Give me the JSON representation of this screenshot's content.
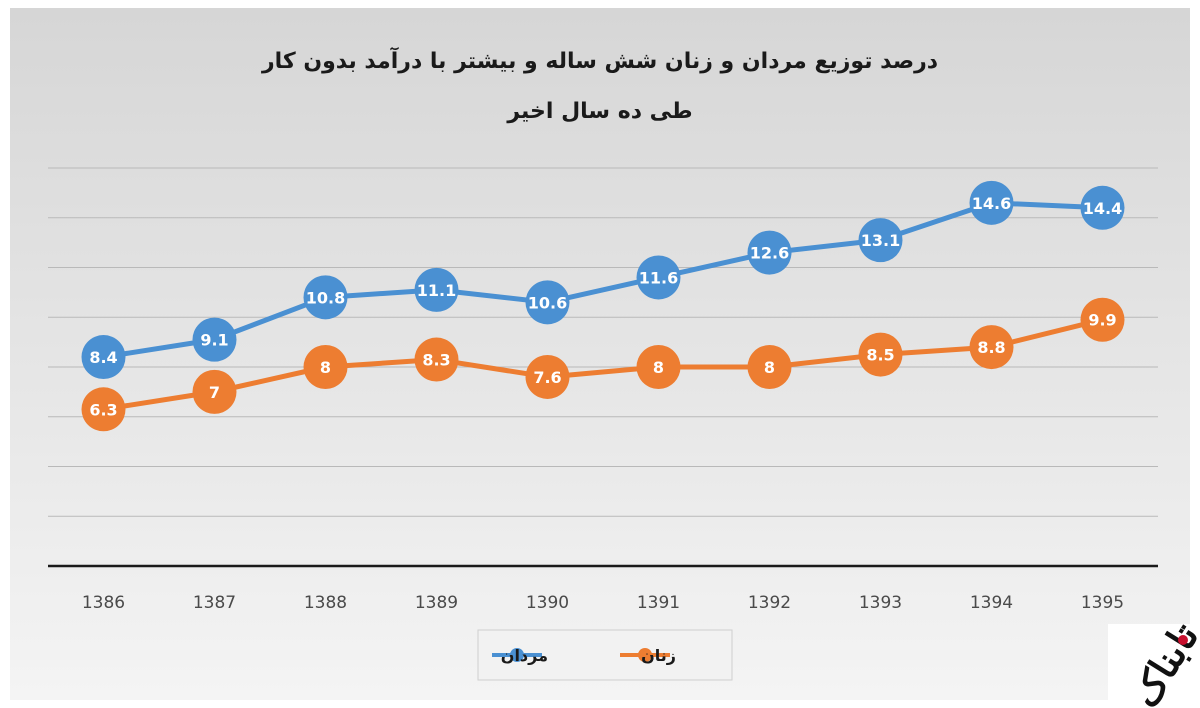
{
  "chart_data": {
    "type": "line",
    "title": "درصد توزیع مردان و زنان شش ساله و بیشتر با درآمد بدون کار",
    "subtitle": "طی ده سال اخیر",
    "categories": [
      "1386",
      "1387",
      "1388",
      "1389",
      "1390",
      "1391",
      "1392",
      "1393",
      "1394",
      "1395"
    ],
    "series": [
      {
        "name": "مردان",
        "color": "#4a90d2",
        "values": [
          8.4,
          9.1,
          10.8,
          11.1,
          10.6,
          11.6,
          12.6,
          13.1,
          14.6,
          14.4
        ],
        "labels": [
          "8.4",
          "9.1",
          "10.8",
          "11.1",
          "10.6",
          "11.6",
          "12.6",
          "13.1",
          "14.6",
          "14.4"
        ]
      },
      {
        "name": "زنان",
        "color": "#ed7d31",
        "values": [
          6.3,
          7,
          8,
          8.3,
          7.6,
          8,
          8,
          8.5,
          8.8,
          9.9
        ],
        "labels": [
          "6.3",
          "7",
          "8",
          "8.3",
          "7.6",
          "8",
          "8",
          "8.5",
          "8.8",
          "9.9"
        ]
      }
    ],
    "ylim": [
      0,
      16
    ],
    "grid": true,
    "legend_position": "bottom"
  },
  "logo": {
    "text": "تابناک",
    "accent_color": "#c8102e"
  },
  "colors": {
    "background_top": "#d6d6d6",
    "background_bottom": "#f4f4f4",
    "gridline": "#b9b9b9",
    "axis": "#1a1a1a"
  }
}
